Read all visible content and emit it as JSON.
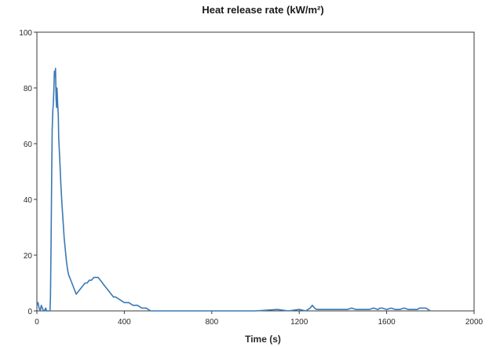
{
  "chart_data": {
    "type": "line",
    "title": "Heat release rate (kW/m²)",
    "xlabel": "Time (s)",
    "ylabel": "",
    "xlim": [
      0,
      2000
    ],
    "ylim": [
      0,
      100
    ],
    "x_ticks": [
      0,
      400,
      800,
      1200,
      1600,
      2000
    ],
    "y_ticks": [
      0,
      20,
      40,
      60,
      80,
      100
    ],
    "x_tick_labels": [
      "0",
      "400",
      "800",
      "1200",
      "1600",
      "2000"
    ],
    "y_tick_labels": [
      "0",
      "20",
      "40",
      "60",
      "80",
      "100"
    ],
    "grid": false,
    "legend": "none",
    "series": [
      {
        "color": "#3a78b5",
        "x": [
          0,
          5,
          10,
          15,
          20,
          25,
          30,
          35,
          40,
          45,
          50,
          55,
          60,
          62,
          65,
          68,
          70,
          73,
          75,
          78,
          80,
          83,
          85,
          88,
          90,
          92,
          95,
          98,
          100,
          105,
          110,
          115,
          120,
          125,
          130,
          135,
          140,
          145,
          150,
          160,
          170,
          180,
          190,
          200,
          210,
          220,
          230,
          240,
          250,
          260,
          270,
          280,
          290,
          300,
          310,
          320,
          330,
          340,
          350,
          360,
          380,
          400,
          420,
          440,
          460,
          480,
          500,
          520,
          540,
          560,
          600,
          700,
          800,
          900,
          1000,
          1100,
          1150,
          1200,
          1230,
          1250,
          1260,
          1270,
          1280,
          1290,
          1300,
          1350,
          1400,
          1420,
          1440,
          1460,
          1480,
          1500,
          1520,
          1540,
          1560,
          1570,
          1580,
          1600,
          1620,
          1640,
          1660,
          1680,
          1700,
          1720,
          1740,
          1750,
          1760,
          1780,
          1800
        ],
        "y": [
          2,
          3,
          1,
          0,
          2,
          1,
          0,
          0,
          1,
          0,
          0,
          0,
          0,
          5,
          25,
          50,
          65,
          72,
          74,
          80,
          86,
          84,
          87,
          76,
          73,
          80,
          74,
          70,
          62,
          54,
          45,
          38,
          32,
          26,
          22,
          18,
          15,
          13,
          12,
          10,
          8,
          6,
          7,
          8,
          9,
          10,
          10,
          11,
          11,
          12,
          12,
          12,
          11,
          10,
          9,
          8,
          7,
          6,
          5,
          5,
          4,
          3,
          3,
          2,
          2,
          1,
          1,
          0,
          0,
          0,
          0,
          0,
          0,
          0,
          0,
          0.5,
          0,
          0.5,
          0,
          1,
          2,
          1,
          0.5,
          0.5,
          0.5,
          0.5,
          0.5,
          0.5,
          1,
          0.5,
          0.5,
          0.5,
          0.5,
          1,
          0.5,
          1,
          1,
          0.5,
          1,
          0.5,
          0.5,
          1,
          0.5,
          0.5,
          0.5,
          1,
          1,
          1,
          0
        ]
      }
    ]
  }
}
